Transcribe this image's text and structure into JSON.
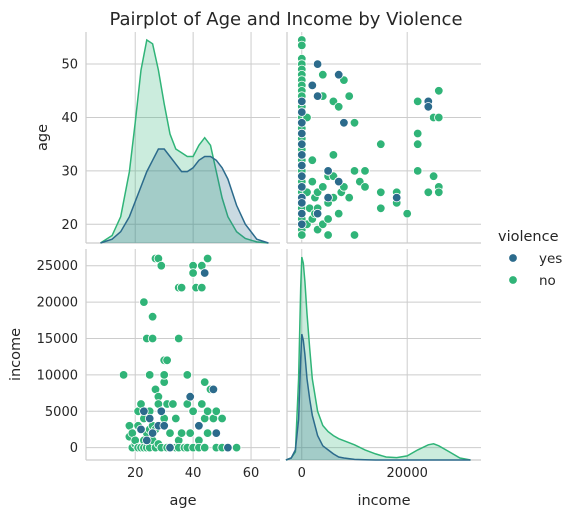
{
  "chart_data": {
    "type": "scatter",
    "title": "Pairplot of Age and Income by Violence",
    "variables": [
      "age",
      "income"
    ],
    "hue": "violence",
    "legend": {
      "title": "violence",
      "position": "right",
      "entries": [
        "yes",
        "no"
      ]
    },
    "grid": true,
    "colors": {
      "yes": "#2c6b8c",
      "no": "#30b478"
    },
    "axes": {
      "age": {
        "label": "age",
        "lim": [
          3,
          70
        ],
        "ticks": [
          20,
          40,
          60
        ]
      },
      "age_y": {
        "label": "age",
        "lim": [
          16.5,
          56
        ],
        "ticks": [
          20,
          30,
          40,
          50
        ]
      },
      "income": {
        "label": "income",
        "lim": [
          -2800,
          34000
        ],
        "ticks": [
          0,
          20000
        ]
      },
      "income_y": {
        "label": "income",
        "lim": [
          -1700,
          27300
        ],
        "ticks": [
          0,
          5000,
          10000,
          15000,
          20000,
          25000
        ]
      }
    },
    "kde_age": {
      "x": [
        8,
        12,
        15,
        18,
        20,
        22,
        24,
        26,
        28,
        30,
        32,
        34,
        36,
        38,
        40,
        42,
        44,
        46,
        48,
        50,
        52,
        55,
        58,
        62,
        66
      ],
      "no": [
        0,
        0.002,
        0.007,
        0.019,
        0.032,
        0.046,
        0.054,
        0.053,
        0.046,
        0.037,
        0.029,
        0.025,
        0.024,
        0.023,
        0.023,
        0.026,
        0.028,
        0.026,
        0.019,
        0.012,
        0.007,
        0.003,
        0.0012,
        0.0003,
        0
      ],
      "yes": [
        0,
        0.001,
        0.003,
        0.007,
        0.011,
        0.015,
        0.019,
        0.022,
        0.025,
        0.025,
        0.023,
        0.021,
        0.019,
        0.019,
        0.02,
        0.022,
        0.023,
        0.023,
        0.022,
        0.02,
        0.017,
        0.01,
        0.005,
        0.001,
        0
      ]
    },
    "kde_income": {
      "x": [
        -3000,
        -2000,
        -1200,
        -600,
        -200,
        0,
        300,
        600,
        1000,
        1500,
        2000,
        3000,
        4000,
        5000,
        6000,
        7000,
        8000,
        10000,
        12000,
        14000,
        16000,
        18000,
        20000,
        22000,
        24000,
        25000,
        26000,
        28000,
        30000,
        32000
      ],
      "no": [
        0,
        0.01,
        0.04,
        0.4,
        0.85,
        1.0,
        0.97,
        0.88,
        0.72,
        0.55,
        0.4,
        0.24,
        0.17,
        0.14,
        0.12,
        0.105,
        0.095,
        0.075,
        0.05,
        0.03,
        0.015,
        0.012,
        0.02,
        0.05,
        0.075,
        0.08,
        0.07,
        0.04,
        0.01,
        0
      ],
      "yes": [
        0,
        0.01,
        0.05,
        0.2,
        0.5,
        0.62,
        0.59,
        0.52,
        0.4,
        0.3,
        0.22,
        0.12,
        0.07,
        0.05,
        0.03,
        0.015,
        0.01,
        0.003,
        0.001,
        0,
        0,
        0,
        0,
        0,
        0,
        0,
        0,
        0,
        0,
        0
      ]
    },
    "scatter": {
      "no": [
        [
          16,
          10000
        ],
        [
          18,
          1500
        ],
        [
          18,
          3000
        ],
        [
          19,
          0
        ],
        [
          19,
          2000
        ],
        [
          20,
          500
        ],
        [
          20,
          1000
        ],
        [
          21,
          0
        ],
        [
          21,
          5000
        ],
        [
          21,
          3000
        ],
        [
          22,
          0
        ],
        [
          22,
          2500
        ],
        [
          22,
          6000
        ],
        [
          23,
          20000
        ],
        [
          23,
          1000
        ],
        [
          23,
          0
        ],
        [
          23,
          4000
        ],
        [
          24,
          15000
        ],
        [
          24,
          5000
        ],
        [
          24,
          2000
        ],
        [
          24,
          0
        ],
        [
          25,
          2500
        ],
        [
          25,
          5000
        ],
        [
          25,
          10000
        ],
        [
          25,
          0
        ],
        [
          26,
          18000
        ],
        [
          26,
          15000
        ],
        [
          26,
          3000
        ],
        [
          26,
          1000
        ],
        [
          27,
          2500
        ],
        [
          27,
          8000
        ],
        [
          27,
          26000
        ],
        [
          27,
          0
        ],
        [
          28,
          26000
        ],
        [
          28,
          7000
        ],
        [
          28,
          500
        ],
        [
          28,
          6000
        ],
        [
          29,
          25000
        ],
        [
          29,
          5000
        ],
        [
          29,
          0
        ],
        [
          30,
          9000
        ],
        [
          30,
          10000
        ],
        [
          30,
          12000
        ],
        [
          30,
          4000
        ],
        [
          31,
          12000
        ],
        [
          31,
          6000
        ],
        [
          31,
          0
        ],
        [
          32,
          2000
        ],
        [
          32,
          0
        ],
        [
          33,
          6000
        ],
        [
          34,
          4000
        ],
        [
          34,
          0
        ],
        [
          35,
          22000
        ],
        [
          35,
          15000
        ],
        [
          35,
          1000
        ],
        [
          35,
          0
        ],
        [
          36,
          22000
        ],
        [
          36,
          2000
        ],
        [
          37,
          0
        ],
        [
          38,
          10000
        ],
        [
          38,
          6000
        ],
        [
          38,
          0
        ],
        [
          39,
          2000
        ],
        [
          40,
          25000
        ],
        [
          40,
          24000
        ],
        [
          40,
          5000
        ],
        [
          40,
          0
        ],
        [
          41,
          22000
        ],
        [
          42,
          1000
        ],
        [
          42,
          0
        ],
        [
          43,
          25000
        ],
        [
          43,
          22000
        ],
        [
          43,
          6000
        ],
        [
          44,
          9000
        ],
        [
          44,
          4000
        ],
        [
          44,
          0
        ],
        [
          45,
          26000
        ],
        [
          45,
          5000
        ],
        [
          45,
          2000
        ],
        [
          46,
          8000
        ],
        [
          47,
          4000
        ],
        [
          48,
          5000
        ],
        [
          48,
          2000
        ],
        [
          48,
          0
        ],
        [
          50,
          4000
        ],
        [
          50,
          0
        ],
        [
          52,
          0
        ],
        [
          55,
          0
        ]
      ],
      "yes": [
        [
          22,
          2500
        ],
        [
          23,
          5000
        ],
        [
          24,
          1000
        ],
        [
          25,
          4000
        ],
        [
          26,
          2000
        ],
        [
          28,
          3000
        ],
        [
          29,
          5000
        ],
        [
          30,
          3000
        ],
        [
          32,
          0
        ],
        [
          39,
          7000
        ],
        [
          42,
          3000
        ],
        [
          44,
          24000
        ],
        [
          47,
          8000
        ],
        [
          48,
          2000
        ],
        [
          52,
          0
        ]
      ],
      "age_income_no": [
        [
          0,
          54.5
        ],
        [
          0,
          53.5
        ],
        [
          0,
          51
        ],
        [
          0,
          50
        ],
        [
          0,
          49
        ],
        [
          0,
          48
        ],
        [
          0,
          47
        ],
        [
          0,
          46
        ],
        [
          0,
          45
        ],
        [
          0,
          44
        ],
        [
          0,
          43
        ],
        [
          0,
          42
        ],
        [
          0,
          41
        ],
        [
          0,
          40
        ],
        [
          0,
          39
        ],
        [
          0,
          38
        ],
        [
          0,
          37
        ],
        [
          0,
          36
        ],
        [
          0,
          35
        ],
        [
          0,
          34
        ],
        [
          0,
          33
        ],
        [
          0,
          32
        ],
        [
          0,
          31
        ],
        [
          0,
          30
        ],
        [
          0,
          29
        ],
        [
          0,
          28
        ],
        [
          0,
          27
        ],
        [
          0,
          26
        ],
        [
          0,
          25
        ],
        [
          0,
          24
        ],
        [
          0,
          23
        ],
        [
          0,
          22
        ],
        [
          0,
          21
        ],
        [
          0,
          20
        ],
        [
          0,
          19
        ],
        [
          0,
          18
        ],
        [
          1000,
          40
        ],
        [
          1000,
          26
        ],
        [
          1000,
          20
        ],
        [
          1500,
          23
        ],
        [
          2000,
          46
        ],
        [
          2000,
          32
        ],
        [
          2000,
          28
        ],
        [
          2000,
          21
        ],
        [
          2500,
          25
        ],
        [
          2500,
          22
        ],
        [
          3000,
          26
        ],
        [
          3000,
          19
        ],
        [
          3000,
          23
        ],
        [
          4000,
          44
        ],
        [
          4000,
          48
        ],
        [
          4000,
          27
        ],
        [
          4000,
          20
        ],
        [
          5000,
          29
        ],
        [
          5000,
          24
        ],
        [
          5000,
          30
        ],
        [
          5000,
          18
        ],
        [
          5000,
          21
        ],
        [
          6000,
          29
        ],
        [
          6000,
          43
        ],
        [
          6000,
          25
        ],
        [
          6000,
          33
        ],
        [
          7000,
          28
        ],
        [
          7000,
          42
        ],
        [
          7000,
          22
        ],
        [
          7500,
          26
        ],
        [
          8000,
          47
        ],
        [
          8000,
          27
        ],
        [
          9000,
          25
        ],
        [
          9000,
          44
        ],
        [
          10000,
          39
        ],
        [
          10000,
          30
        ],
        [
          10000,
          18
        ],
        [
          11000,
          28
        ],
        [
          12000,
          30
        ],
        [
          12000,
          27
        ],
        [
          15000,
          35
        ],
        [
          15000,
          26
        ],
        [
          15000,
          23
        ],
        [
          18000,
          26
        ],
        [
          18000,
          24
        ],
        [
          20000,
          22
        ],
        [
          22000,
          43
        ],
        [
          22000,
          37
        ],
        [
          22000,
          35
        ],
        [
          22000,
          30
        ],
        [
          24000,
          42
        ],
        [
          24000,
          26
        ],
        [
          25000,
          40
        ],
        [
          25000,
          29
        ],
        [
          26000,
          45
        ],
        [
          26000,
          40
        ],
        [
          26000,
          27
        ],
        [
          26000,
          26
        ]
      ],
      "age_income_yes": [
        [
          0,
          43
        ],
        [
          0,
          41
        ],
        [
          0,
          39
        ],
        [
          0,
          37
        ],
        [
          0,
          35
        ],
        [
          0,
          33
        ],
        [
          0,
          31
        ],
        [
          0,
          29
        ],
        [
          0,
          27
        ],
        [
          0,
          25
        ],
        [
          0,
          24
        ],
        [
          0,
          22
        ],
        [
          0,
          20
        ],
        [
          2000,
          46
        ],
        [
          3000,
          44
        ],
        [
          3000,
          50
        ],
        [
          3000,
          22
        ],
        [
          5000,
          30
        ],
        [
          5000,
          25
        ],
        [
          7000,
          28
        ],
        [
          7000,
          48
        ],
        [
          8000,
          39
        ],
        [
          24000,
          43
        ],
        [
          24000,
          42
        ],
        [
          18000,
          25
        ]
      ]
    }
  }
}
